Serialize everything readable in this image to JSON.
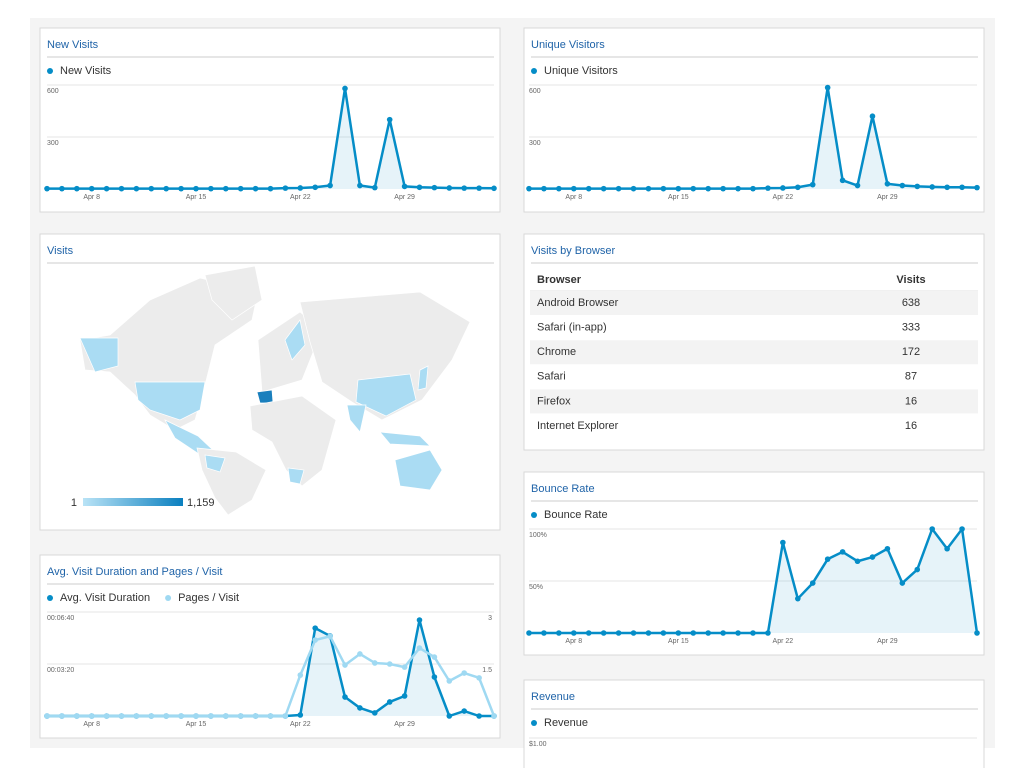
{
  "chart_data": [
    {
      "type": "area",
      "title": "New Visits",
      "categories": [
        null,
        null,
        null,
        "Apr 8",
        null,
        null,
        null,
        null,
        null,
        null,
        "Apr 15",
        null,
        null,
        null,
        null,
        null,
        null,
        "Apr 22",
        null,
        null,
        null,
        null,
        null,
        null,
        "Apr 29",
        null,
        null,
        null,
        null,
        null,
        null
      ],
      "series": [
        {
          "name": "New Visits",
          "color": "#058dc7",
          "filled": true,
          "values": [
            2,
            2,
            2,
            2,
            2,
            2,
            2,
            2,
            2,
            2,
            2,
            2,
            2,
            2,
            2,
            2,
            5,
            6,
            10,
            20,
            580,
            20,
            8,
            400,
            15,
            10,
            8,
            6,
            5,
            5,
            4
          ]
        }
      ],
      "ylim": [
        0,
        600
      ],
      "yticks": [
        300,
        600
      ],
      "grid": true
    },
    {
      "type": "area",
      "title": "Unique Visitors",
      "categories": [
        null,
        null,
        null,
        "Apr 8",
        null,
        null,
        null,
        null,
        null,
        null,
        "Apr 15",
        null,
        null,
        null,
        null,
        null,
        null,
        "Apr 22",
        null,
        null,
        null,
        null,
        null,
        null,
        "Apr 29",
        null,
        null,
        null,
        null,
        null,
        null
      ],
      "series": [
        {
          "name": "Unique Visitors",
          "color": "#058dc7",
          "filled": true,
          "values": [
            2,
            2,
            2,
            2,
            2,
            2,
            2,
            2,
            2,
            2,
            2,
            2,
            2,
            2,
            2,
            2,
            5,
            6,
            10,
            25,
            585,
            50,
            20,
            420,
            30,
            20,
            15,
            12,
            10,
            10,
            8
          ]
        }
      ],
      "ylim": [
        0,
        600
      ],
      "yticks": [
        300,
        600
      ],
      "grid": true
    },
    {
      "type": "area",
      "title": "Bounce Rate",
      "categories": [
        null,
        null,
        null,
        "Apr 8",
        null,
        null,
        null,
        null,
        null,
        null,
        "Apr 15",
        null,
        null,
        null,
        null,
        null,
        null,
        "Apr 22",
        null,
        null,
        null,
        null,
        null,
        null,
        "Apr 29",
        null,
        null,
        null,
        null,
        null,
        null
      ],
      "series": [
        {
          "name": "Bounce Rate",
          "color": "#058dc7",
          "filled": true,
          "values": [
            0,
            0,
            0,
            0,
            0,
            0,
            0,
            0,
            0,
            0,
            0,
            0,
            0,
            0,
            0,
            0,
            0,
            87,
            33,
            48,
            71,
            78,
            69,
            73,
            81,
            48,
            61,
            100,
            81,
            100,
            0
          ]
        }
      ],
      "ylim": [
        0,
        100
      ],
      "yticks": [
        {
          "value": 50,
          "label": "50%"
        },
        {
          "value": 100,
          "label": "100%"
        }
      ],
      "grid": true
    },
    {
      "type": "area",
      "title": "Avg. Visit Duration and Pages / Visit",
      "categories": [
        null,
        null,
        null,
        "Apr 8",
        null,
        null,
        null,
        null,
        null,
        null,
        "Apr 15",
        null,
        null,
        null,
        null,
        null,
        null,
        "Apr 22",
        null,
        null,
        null,
        null,
        null,
        null,
        "Apr 29",
        null,
        null,
        null,
        null,
        null,
        null
      ],
      "series": [
        {
          "name": "Avg. Visit Duration",
          "color": "#058dc7",
          "filled": true,
          "values": [
            0,
            0,
            0,
            0,
            0,
            0,
            0,
            0,
            0,
            0,
            0,
            0,
            0,
            0,
            0,
            0,
            0,
            4,
            338,
            308,
            73,
            31,
            12,
            54,
            77,
            369,
            150,
            0,
            19,
            0,
            0
          ]
        },
        {
          "name": "Pages / Visit",
          "color": "#9fd9f2",
          "filled": false,
          "axis": "y2",
          "values": [
            0,
            0,
            0,
            0,
            0,
            0,
            0,
            0,
            0,
            0,
            0,
            0,
            0,
            0,
            0,
            0,
            0,
            1.18,
            2.19,
            2.3,
            1.47,
            1.79,
            1.53,
            1.5,
            1.41,
            1.96,
            1.7,
            1.01,
            1.24,
            1.1,
            0
          ]
        }
      ],
      "ylim": [
        0,
        400
      ],
      "yticks": [
        {
          "value": 200,
          "label": "00:03:20"
        },
        {
          "value": 400,
          "label": "00:06:40"
        }
      ],
      "y2lim": [
        0,
        3
      ],
      "y2ticks": [
        1.5,
        3
      ],
      "grid": true
    },
    {
      "type": "area",
      "title": "Revenue",
      "series": [
        {
          "name": "Revenue",
          "color": "#058dc7"
        }
      ],
      "ylim": [
        0,
        1
      ],
      "yticks": [
        {
          "value": 1,
          "label": "$1.00"
        }
      ],
      "grid": true
    }
  ],
  "map": {
    "title": "Visits",
    "legend": {
      "min": "1",
      "max": "1,159"
    }
  },
  "table": {
    "title": "Visits by Browser",
    "columns": [
      "Browser",
      "Visits"
    ],
    "rows": [
      [
        "Android Browser",
        638
      ],
      [
        "Safari (in-app)",
        333
      ],
      [
        "Chrome",
        172
      ],
      [
        "Safari",
        87
      ],
      [
        "Firefox",
        16
      ],
      [
        "Internet Explorer",
        16
      ]
    ]
  }
}
